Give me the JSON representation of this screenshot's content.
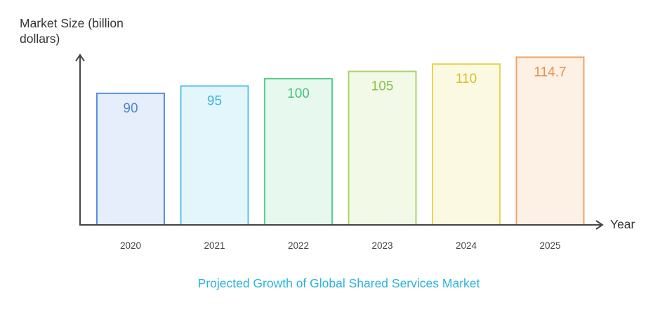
{
  "chart_data": {
    "type": "bar",
    "title": "Projected Growth of Global Shared Services Market",
    "xlabel": "Year",
    "ylabel": "Market Size (billion dollars)",
    "categories": [
      "2020",
      "2021",
      "2022",
      "2023",
      "2024",
      "2025"
    ],
    "values": [
      90,
      95,
      100,
      105,
      110,
      114.7
    ],
    "value_labels": [
      "90",
      "95",
      "100",
      "105",
      "110",
      "114.7"
    ],
    "ylim": [
      0,
      125
    ],
    "grid": false,
    "legend": "none",
    "colors": [
      {
        "stroke": "#5b8fd9",
        "fill": "#e6eefc",
        "text": "#4a86d8"
      },
      {
        "stroke": "#5ac3e8",
        "fill": "#e3f6fc",
        "text": "#3fb5e0"
      },
      {
        "stroke": "#5ccf8b",
        "fill": "#e7f8ee",
        "text": "#46c07d"
      },
      {
        "stroke": "#a9d46a",
        "fill": "#f2f9e6",
        "text": "#8cc04d"
      },
      {
        "stroke": "#e7d54c",
        "fill": "#fcf9e2",
        "text": "#d6c032"
      },
      {
        "stroke": "#eda56a",
        "fill": "#fdf0e4",
        "text": "#e8914c"
      }
    ]
  }
}
